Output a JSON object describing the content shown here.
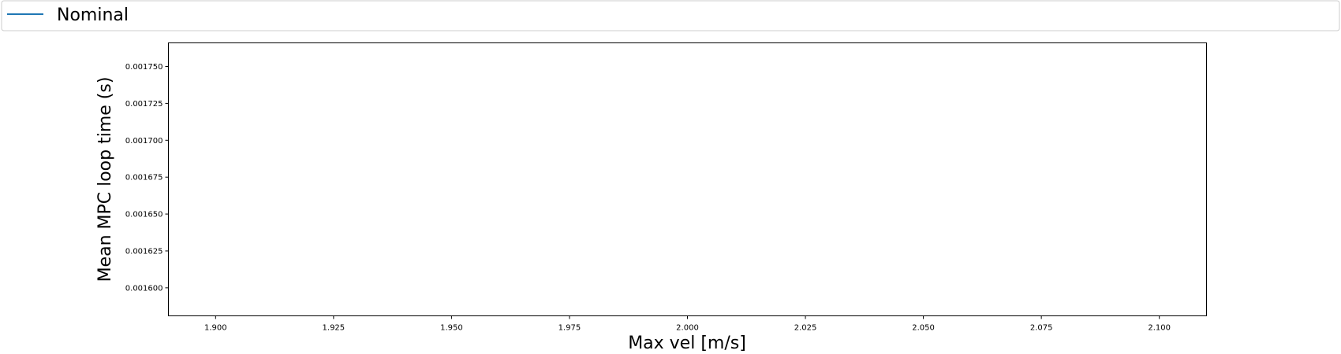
{
  "chart_data": {
    "type": "line",
    "title": "",
    "xlabel": "Max vel [m/s]",
    "ylabel": "Mean MPC loop time (s)",
    "xlim": [
      1.89,
      2.11
    ],
    "ylim": [
      0.001581,
      0.001766
    ],
    "x_ticks": [
      1.9,
      1.925,
      1.95,
      1.975,
      2.0,
      2.025,
      2.05,
      2.075,
      2.1
    ],
    "x_tick_labels": [
      "1.900",
      "1.925",
      "1.950",
      "1.975",
      "2.000",
      "2.025",
      "2.050",
      "2.075",
      "2.100"
    ],
    "y_ticks": [
      0.0016,
      0.001625,
      0.00165,
      0.001675,
      0.0017,
      0.001725,
      0.00175
    ],
    "y_tick_labels": [
      "0.001600",
      "0.001625",
      "0.001650",
      "0.001675",
      "0.001700",
      "0.001725",
      "0.001750"
    ],
    "grid": false,
    "legend_position": "top, full width",
    "series": [
      {
        "name": "Nominal",
        "color": "#1f77b4",
        "x": [],
        "y": []
      }
    ]
  }
}
